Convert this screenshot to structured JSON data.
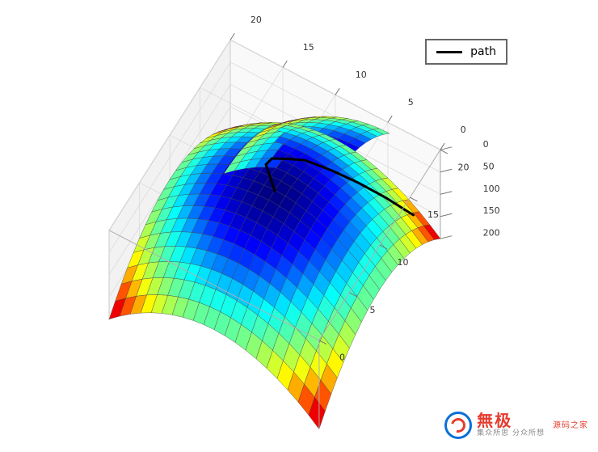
{
  "chart": {
    "type": "3d_surface",
    "function_description": "z = x^2 + y^2 (paraboloid, two offset copies visible)",
    "colormap": "jet",
    "colormap_stops": [
      {
        "v": 0.0,
        "c": "#00007f"
      },
      {
        "v": 0.11,
        "c": "#0000ff"
      },
      {
        "v": 0.34,
        "c": "#00ffff"
      },
      {
        "v": 0.5,
        "c": "#7fff7f"
      },
      {
        "v": 0.66,
        "c": "#ffff00"
      },
      {
        "v": 0.89,
        "c": "#ff0000"
      },
      {
        "v": 1.0,
        "c": "#7f0000"
      }
    ],
    "grid_color": "#444444",
    "grid_line_width": 0.4,
    "background_color": "#ffffff",
    "pane_edge_color": "#b0b0b0",
    "axes": {
      "x": {
        "lim": [
          0,
          20
        ],
        "ticks": [
          0,
          5,
          10,
          15,
          20
        ],
        "fontsize": 11
      },
      "y": {
        "lim": [
          0,
          20
        ],
        "ticks": [
          0,
          5,
          10,
          15,
          20
        ],
        "fontsize": 11
      },
      "z": {
        "lim": [
          0,
          200
        ],
        "ticks": [
          0,
          50,
          100,
          150,
          200
        ],
        "fontsize": 11
      }
    },
    "view": {
      "elev": 25,
      "azim": -60
    },
    "surfaces": [
      {
        "name": "main_paraboloid",
        "x_range": [
          -10,
          10
        ],
        "y_range": [
          -10,
          10
        ],
        "step": 1,
        "offset_display": [
          10,
          10
        ],
        "z_formula": "x*x + y*y",
        "z_min": 0,
        "z_max": 200
      },
      {
        "name": "secondary_paraboloid",
        "x_range": [
          0,
          10
        ],
        "y_range": [
          0,
          10
        ],
        "step": 1,
        "offset_display": [
          12,
          6
        ],
        "z_formula": "x*x + y*y - 20",
        "z_min": -20,
        "z_max": 180
      }
    ],
    "path": {
      "label": "path",
      "color": "#000000",
      "line_width": 3,
      "points_3d": [
        [
          19,
          2,
          150
        ],
        [
          18,
          4,
          115
        ],
        [
          17,
          6,
          85
        ],
        [
          16,
          8,
          60
        ],
        [
          15,
          10,
          40
        ],
        [
          14,
          11,
          28
        ],
        [
          13,
          12,
          18
        ],
        [
          12,
          12,
          10
        ],
        [
          11,
          11,
          5
        ],
        [
          10,
          10,
          2
        ]
      ]
    },
    "legend": {
      "position": "upper right",
      "frame_color": "#666666",
      "frame_width": 2,
      "bg": "#ffffff",
      "fontsize": 14,
      "items": [
        {
          "label": "path",
          "color": "#000000",
          "line_width": 3
        }
      ]
    }
  },
  "watermark": {
    "brand_main": "無极",
    "brand_side_top": "源码之家",
    "brand_side_bottom": "集众所思  分众所想",
    "logo_outer_color": "#0a6fd8",
    "logo_inner_color": "#e63b2e",
    "text_main_color": "#e63b2e",
    "text_sub_color": "#888888"
  }
}
